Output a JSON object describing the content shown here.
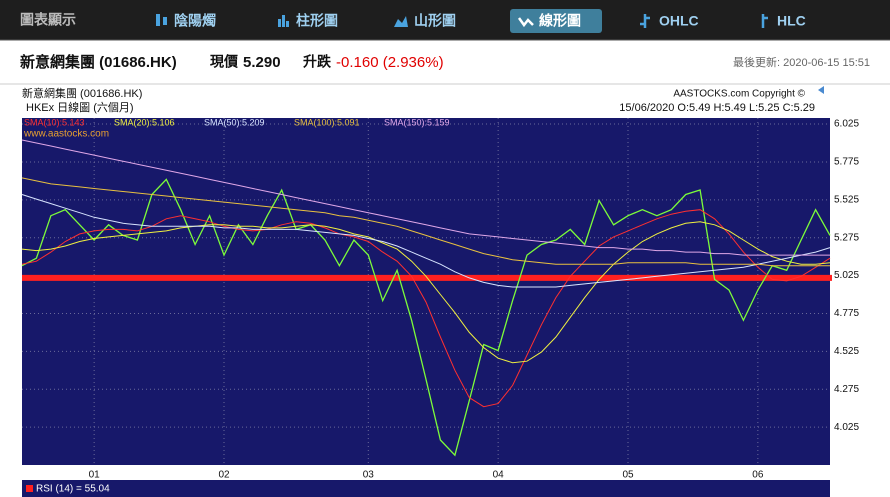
{
  "nav": {
    "label": "圖表顯示",
    "tabs": [
      "陰陽燭",
      "柱形圖",
      "山形圖",
      "線形圖",
      "OHLC",
      "HLC"
    ],
    "active": 3
  },
  "quote": {
    "name": "新意網集團 (01686.HK)",
    "price_label": "現價",
    "price": "5.290",
    "change_label": "升跌",
    "change": "-0.160 (2.936%)",
    "updated": "最後更新: 2020-06-15 15:51"
  },
  "chart_data": {
    "type": "line",
    "title": "新意網集團 (001686.HK)",
    "subtitle": "HKEx 日線圖 (六個月)",
    "copyright": "AASTOCKS.com Copyright ©",
    "ohlc": "15/06/2020  O:5.49 H:5.49 L:5.25 C:5.29",
    "watermark": "www.aastocks.com",
    "rsi_label": "RSI (14) = 55.04",
    "categories": [
      null,
      null,
      null,
      null,
      null,
      "01",
      null,
      null,
      null,
      null,
      null,
      null,
      null,
      null,
      "02",
      null,
      null,
      null,
      null,
      null,
      null,
      null,
      null,
      null,
      "03",
      null,
      null,
      null,
      null,
      null,
      null,
      null,
      null,
      "04",
      null,
      null,
      null,
      null,
      null,
      null,
      null,
      null,
      "05",
      null,
      null,
      null,
      null,
      null,
      null,
      null,
      null,
      "06",
      null,
      null,
      null,
      null,
      null
    ],
    "series": [
      {
        "color": "#7CFC3A",
        "values": [
          5.09,
          5.14,
          5.42,
          5.46,
          5.36,
          5.26,
          5.36,
          5.29,
          5.26,
          5.56,
          5.66,
          5.46,
          5.23,
          5.42,
          5.16,
          5.36,
          5.23,
          5.42,
          5.59,
          5.33,
          5.36,
          5.26,
          5.09,
          5.26,
          5.16,
          4.86,
          5.06,
          4.73,
          4.34,
          3.94,
          3.84,
          4.2,
          4.57,
          4.53,
          4.86,
          5.16,
          5.23,
          5.26,
          5.33,
          5.23,
          5.52,
          5.36,
          5.42,
          5.46,
          5.42,
          5.46,
          5.56,
          5.59,
          5.0,
          4.93,
          4.73,
          4.93,
          5.09,
          5.06,
          5.26,
          5.46,
          5.29
        ]
      },
      {
        "name": "SMA(10):5.143",
        "color": "#ff3030",
        "values": [
          5.1,
          5.12,
          5.18,
          5.25,
          5.3,
          5.32,
          5.33,
          5.33,
          5.32,
          5.35,
          5.4,
          5.42,
          5.4,
          5.38,
          5.35,
          5.33,
          5.32,
          5.33,
          5.36,
          5.38,
          5.37,
          5.34,
          5.3,
          5.28,
          5.25,
          5.18,
          5.12,
          5.02,
          4.85,
          4.62,
          4.4,
          4.22,
          4.16,
          4.18,
          4.3,
          4.5,
          4.7,
          4.88,
          5.02,
          5.12,
          5.22,
          5.28,
          5.32,
          5.36,
          5.4,
          5.43,
          5.45,
          5.46,
          5.4,
          5.3,
          5.18,
          5.08,
          5.0,
          4.99,
          5.02,
          5.08,
          5.14
        ]
      },
      {
        "name": "SMA(20):5.106",
        "color": "#f0f040",
        "values": [
          5.2,
          5.19,
          5.2,
          5.22,
          5.25,
          5.27,
          5.28,
          5.29,
          5.3,
          5.31,
          5.32,
          5.34,
          5.35,
          5.36,
          5.36,
          5.35,
          5.35,
          5.34,
          5.34,
          5.35,
          5.36,
          5.35,
          5.33,
          5.3,
          5.28,
          5.24,
          5.2,
          5.12,
          5.02,
          4.9,
          4.78,
          4.65,
          4.55,
          4.48,
          4.45,
          4.46,
          4.52,
          4.62,
          4.75,
          4.88,
          5.0,
          5.1,
          5.18,
          5.25,
          5.3,
          5.34,
          5.37,
          5.38,
          5.36,
          5.32,
          5.26,
          5.2,
          5.15,
          5.12,
          5.1,
          5.1,
          5.11
        ]
      },
      {
        "name": "SMA(50):5.209",
        "color": "#d8e4ff",
        "values": [
          5.56,
          5.53,
          5.5,
          5.47,
          5.44,
          5.41,
          5.39,
          5.37,
          5.36,
          5.35,
          5.35,
          5.35,
          5.35,
          5.35,
          5.34,
          5.34,
          5.33,
          5.33,
          5.33,
          5.33,
          5.32,
          5.31,
          5.3,
          5.29,
          5.27,
          5.25,
          5.22,
          5.18,
          5.14,
          5.1,
          5.05,
          5.01,
          4.98,
          4.96,
          4.95,
          4.95,
          4.95,
          4.95,
          4.96,
          4.97,
          4.98,
          4.99,
          5.0,
          5.01,
          5.02,
          5.03,
          5.04,
          5.05,
          5.06,
          5.07,
          5.08,
          5.1,
          5.12,
          5.14,
          5.16,
          5.18,
          5.21
        ]
      },
      {
        "name": "SMA(100):5.091",
        "color": "#e8c040",
        "values": [
          5.67,
          5.65,
          5.63,
          5.62,
          5.61,
          5.6,
          5.59,
          5.58,
          5.57,
          5.56,
          5.55,
          5.54,
          5.53,
          5.52,
          5.51,
          5.5,
          5.49,
          5.48,
          5.47,
          5.46,
          5.45,
          5.44,
          5.42,
          5.41,
          5.39,
          5.37,
          5.35,
          5.32,
          5.29,
          5.26,
          5.23,
          5.2,
          5.17,
          5.15,
          5.13,
          5.12,
          5.11,
          5.1,
          5.1,
          5.1,
          5.1,
          5.1,
          5.11,
          5.11,
          5.11,
          5.11,
          5.11,
          5.1,
          5.1,
          5.1,
          5.1,
          5.1,
          5.09,
          5.09,
          5.09,
          5.09,
          5.09
        ]
      },
      {
        "name": "SMA(150):5.159",
        "color": "#e0a8e8",
        "values": [
          5.92,
          5.9,
          5.88,
          5.86,
          5.84,
          5.82,
          5.8,
          5.78,
          5.76,
          5.74,
          5.72,
          5.7,
          5.68,
          5.66,
          5.64,
          5.62,
          5.6,
          5.58,
          5.56,
          5.54,
          5.52,
          5.5,
          5.48,
          5.46,
          5.44,
          5.42,
          5.4,
          5.38,
          5.36,
          5.34,
          5.32,
          5.3,
          5.29,
          5.28,
          5.27,
          5.26,
          5.25,
          5.24,
          5.23,
          5.22,
          5.21,
          5.21,
          5.2,
          5.2,
          5.19,
          5.19,
          5.18,
          5.18,
          5.17,
          5.17,
          5.16,
          5.16,
          5.16,
          5.16,
          5.16,
          5.16,
          5.16
        ]
      }
    ],
    "reference_line": {
      "value": 5.01,
      "color": "#ff2020"
    },
    "ylim": [
      3.775,
      6.065
    ],
    "yticks": [
      6.025,
      5.775,
      5.525,
      5.275,
      5.025,
      4.775,
      4.525,
      4.275,
      4.025
    ],
    "grid": true
  }
}
